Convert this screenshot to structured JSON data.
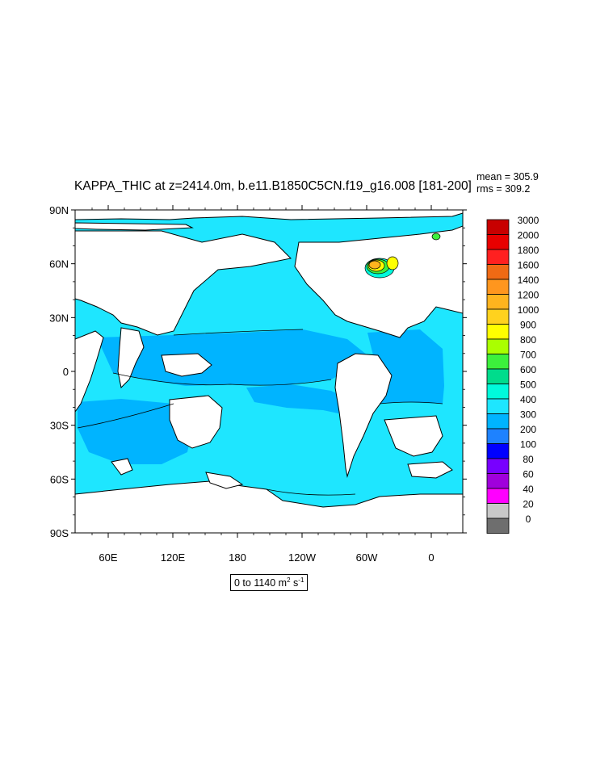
{
  "title": "KAPPA_THIC at z=2414.0m, b.e11.B1850C5CN.f19_g16.008 [181-200]",
  "stats": {
    "mean": "mean = 305.9",
    "rms": "rms = 309.2"
  },
  "range": {
    "prefix": "0 to 1140 m",
    "exp1": "2",
    "mid": " s",
    "exp2": "-1"
  },
  "axes": {
    "lat_labels": [
      "90N",
      "60N",
      "30N",
      "0",
      "30S",
      "60S",
      "90S"
    ],
    "lon_labels": [
      "60E",
      "120E",
      "180",
      "120W",
      "60W",
      "0"
    ]
  },
  "colorbar": {
    "levels": [
      "3000",
      "2000",
      "1800",
      "1600",
      "1400",
      "1200",
      "1000",
      "900",
      "800",
      "700",
      "600",
      "500",
      "400",
      "300",
      "200",
      "100",
      "80",
      "60",
      "40",
      "20",
      "0"
    ],
    "colors": [
      "#c80000",
      "#e80000",
      "#ff2020",
      "#f06a14",
      "#ff961e",
      "#ffb41e",
      "#ffd21e",
      "#ffff00",
      "#aaff00",
      "#3cf03c",
      "#00dc8c",
      "#00fadc",
      "#1ee6ff",
      "#00b4ff",
      "#1e82ff",
      "#0000ff",
      "#7800ff",
      "#a000dc",
      "#ff00ff",
      "#c8c8c8",
      "#6e6e6e"
    ]
  },
  "colors": {
    "ocean_400": "#1ee6ff",
    "ocean_300": "#00b4ff",
    "land": "#ffffff",
    "coast": "#000000"
  }
}
